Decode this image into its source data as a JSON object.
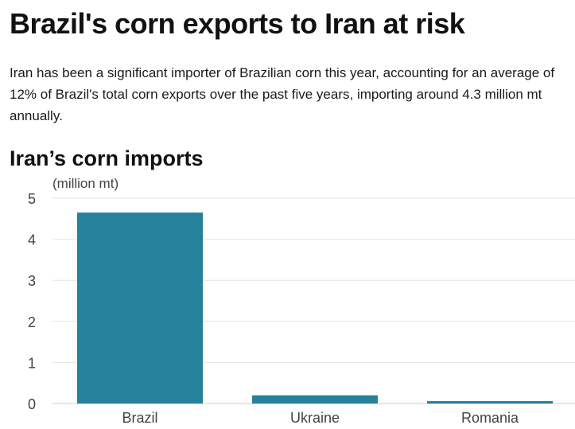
{
  "headline": "Brazil's corn exports to Iran at risk",
  "intro": "Iran has been a significant importer of Brazilian corn this year, accounting for an average of 12% of Brazil's total corn exports over the past five years, importing around 4.3 million mt annually.",
  "chart_data": {
    "type": "bar",
    "title": "Iran’s corn imports",
    "unit_label": "(million mt)",
    "categories": [
      "Brazil",
      "Ukraine",
      "Romania"
    ],
    "values": [
      4.65,
      0.2,
      0.06
    ],
    "ylim": [
      0,
      5
    ],
    "yticks": [
      0,
      1,
      2,
      3,
      4,
      5
    ],
    "bar_color": "#26819a",
    "grid": true
  }
}
